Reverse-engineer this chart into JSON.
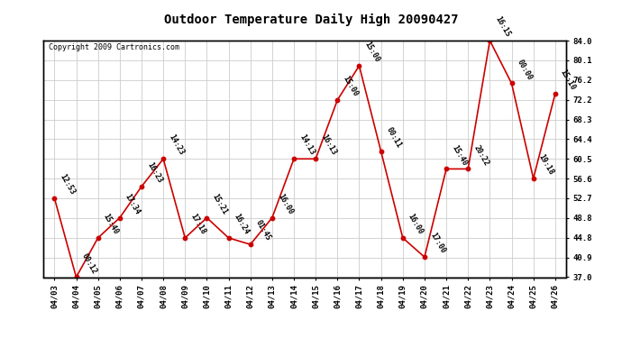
{
  "title": "Outdoor Temperature Daily High 20090427",
  "copyright": "Copyright 2009 Cartronics.com",
  "x_labels": [
    "04/03",
    "04/04",
    "04/05",
    "04/06",
    "04/07",
    "04/08",
    "04/09",
    "04/10",
    "04/11",
    "04/12",
    "04/13",
    "04/14",
    "04/15",
    "04/16",
    "04/17",
    "04/18",
    "04/19",
    "04/20",
    "04/21",
    "04/22",
    "04/23",
    "04/24",
    "04/25",
    "04/26"
  ],
  "y_values": [
    52.7,
    37.0,
    44.8,
    48.8,
    55.0,
    60.5,
    44.8,
    48.8,
    44.8,
    43.5,
    48.8,
    60.5,
    60.5,
    72.2,
    79.0,
    62.0,
    44.8,
    41.0,
    58.5,
    58.5,
    84.0,
    75.5,
    56.6,
    73.4
  ],
  "point_labels": [
    "12:53",
    "00:12",
    "15:40",
    "17:34",
    "16:23",
    "14:23",
    "17:18",
    "15:21",
    "16:24",
    "01:45",
    "16:00",
    "14:13",
    "16:13",
    "15:00",
    "15:00",
    "00:11",
    "16:00",
    "17:00",
    "15:40",
    "20:22",
    "16:15",
    "00:00",
    "19:18",
    "15:10"
  ],
  "y_ticks": [
    37.0,
    40.9,
    44.8,
    48.8,
    52.7,
    56.6,
    60.5,
    64.4,
    68.3,
    72.2,
    76.2,
    80.1,
    84.0
  ],
  "ylim": [
    37.0,
    84.0
  ],
  "line_color": "#cc0000",
  "marker_color": "#cc0000",
  "bg_color": "#ffffff",
  "grid_color": "#cccccc",
  "title_fontsize": 10,
  "label_fontsize": 6.0,
  "tick_fontsize": 6.5,
  "copyright_fontsize": 6
}
